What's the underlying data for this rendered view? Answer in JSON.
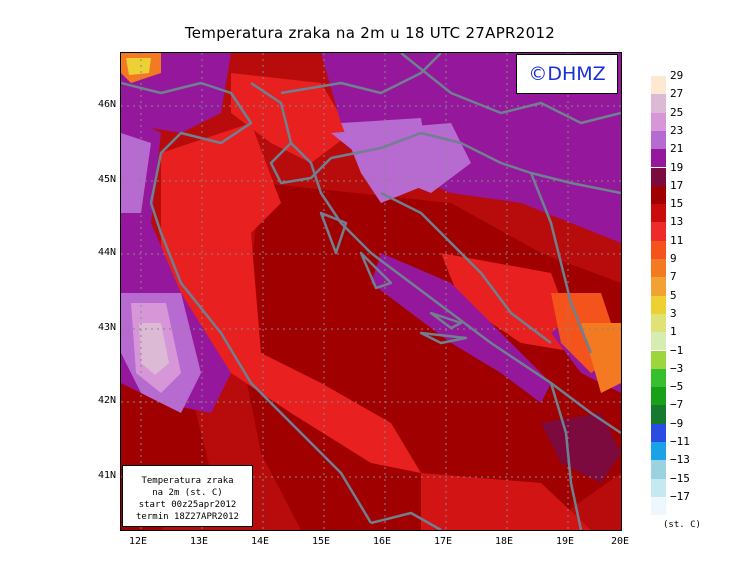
{
  "title": "Temperatura zraka na 2m u 18 UTC 27APR2012",
  "logo_text": "©DHMZ",
  "lat_labels": [
    "46N",
    "45N",
    "44N",
    "43N",
    "42N",
    "41N"
  ],
  "lon_labels": [
    "12E",
    "13E",
    "14E",
    "15E",
    "16E",
    "17E",
    "18E",
    "19E",
    "20E"
  ],
  "info_box": {
    "line1": "Temperatura zraka",
    "line2": "na 2m (st. C)",
    "line3": "start 00z25apr2012",
    "line4": "termin 18Z27APR2012"
  },
  "legend": {
    "unit": "(st. C)",
    "labels": [
      "29",
      "27",
      "25",
      "23",
      "21",
      "19",
      "17",
      "15",
      "13",
      "11",
      "9",
      "7",
      "5",
      "3",
      "1",
      "−1",
      "−3",
      "−5",
      "−7",
      "−9",
      "−11",
      "−13",
      "−15",
      "−17"
    ],
    "colors": [
      "#fde8d2",
      "#dcbad6",
      "#d696d8",
      "#b76ad0",
      "#94179c",
      "#7c0a3f",
      "#a00000",
      "#c80c0c",
      "#ee2a2a",
      "#f4541b",
      "#f47a22",
      "#f1a233",
      "#edd034",
      "#e1e276",
      "#d6ecb0",
      "#9cd63c",
      "#36c02e",
      "#18a018",
      "#157a2e",
      "#2a4ce2",
      "#1aa2e6",
      "#9ad2e2",
      "#c6e8f0",
      "#eef7fb"
    ]
  },
  "map": {
    "lon_range": [
      11.8,
      20.0
    ],
    "lat_range": [
      40.3,
      46.7
    ]
  }
}
